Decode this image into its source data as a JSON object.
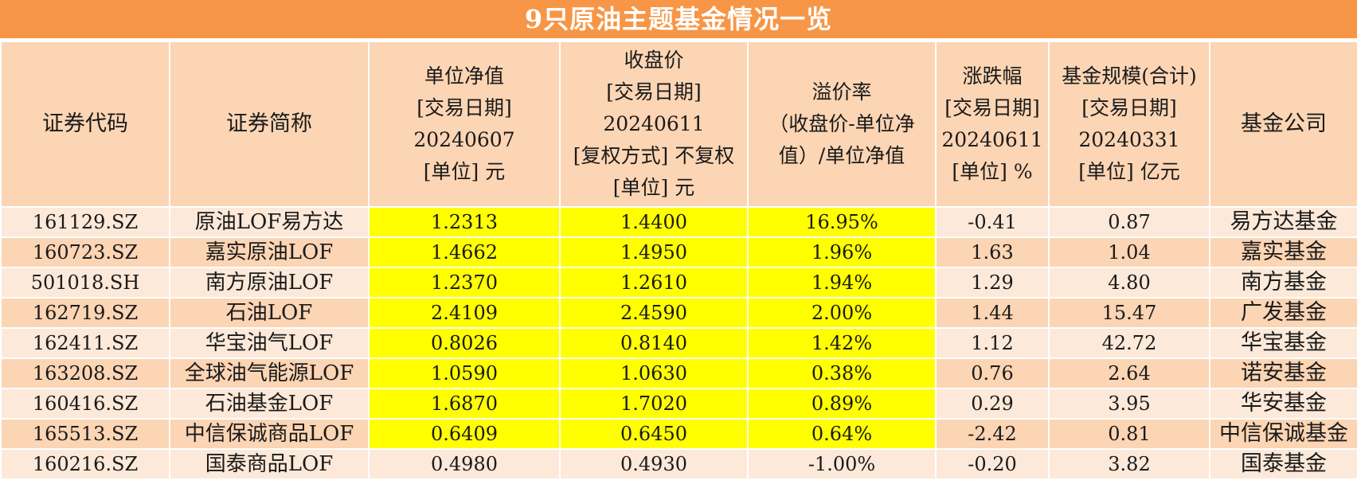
{
  "title": "9只原油主题基金情况一览",
  "headers": [
    [
      "证券代码"
    ],
    [
      "证券简称"
    ],
    [
      "单位净值",
      "[交易日期]",
      "20240607",
      "[单位] 元"
    ],
    [
      "收盘价",
      "[交易日期]",
      "20240611",
      "[复权方式] 不复权",
      "[单位] 元"
    ],
    [
      "溢价率",
      "（收盘价-单位净",
      "值）/单位净值"
    ],
    [
      "涨跌幅",
      "[交易日期]",
      "20240611",
      "[单位] %"
    ],
    [
      "基金规模(合计)",
      "[交易日期]",
      "20240331",
      "[单位] 亿元"
    ],
    [
      "基金公司"
    ]
  ],
  "rows": [
    [
      "161129.SZ",
      "原油LOF易方达",
      "1.2313",
      "1.4400",
      "16.95%",
      "-0.41",
      "0.87",
      "易方达基金"
    ],
    [
      "160723.SZ",
      "嘉实原油LOF",
      "1.4662",
      "1.4950",
      "1.96%",
      "1.63",
      "1.04",
      "嘉实基金"
    ],
    [
      "501018.SH",
      "南方原油LOF",
      "1.2370",
      "1.2610",
      "1.94%",
      "1.29",
      "4.80",
      "南方基金"
    ],
    [
      "162719.SZ",
      "石油LOF",
      "2.4109",
      "2.4590",
      "2.00%",
      "1.44",
      "15.47",
      "广发基金"
    ],
    [
      "162411.SZ",
      "华宝油气LOF",
      "0.8026",
      "0.8140",
      "1.42%",
      "1.12",
      "42.72",
      "华宝基金"
    ],
    [
      "163208.SZ",
      "全球油气能源LOF",
      "1.0590",
      "1.0630",
      "0.38%",
      "0.76",
      "2.64",
      "诺安基金"
    ],
    [
      "160416.SZ",
      "石油基金LOF",
      "1.6870",
      "1.7020",
      "0.89%",
      "0.29",
      "3.95",
      "华安基金"
    ],
    [
      "165513.SZ",
      "中信保诚商品LOF",
      "0.6409",
      "0.6450",
      "0.64%",
      "-2.42",
      "0.81",
      "中信保诚基金"
    ],
    [
      "160216.SZ",
      "国泰商品LOF",
      "0.4980",
      "0.4930",
      "-1.00%",
      "-0.20",
      "3.82",
      "国泰基金"
    ]
  ],
  "colors": {
    "title_bg": "#f79646",
    "header_bg": "#fcd5b4",
    "row_light": "#fde9d9",
    "row_dark": "#fcd5b4",
    "highlight": "#ffff00"
  }
}
